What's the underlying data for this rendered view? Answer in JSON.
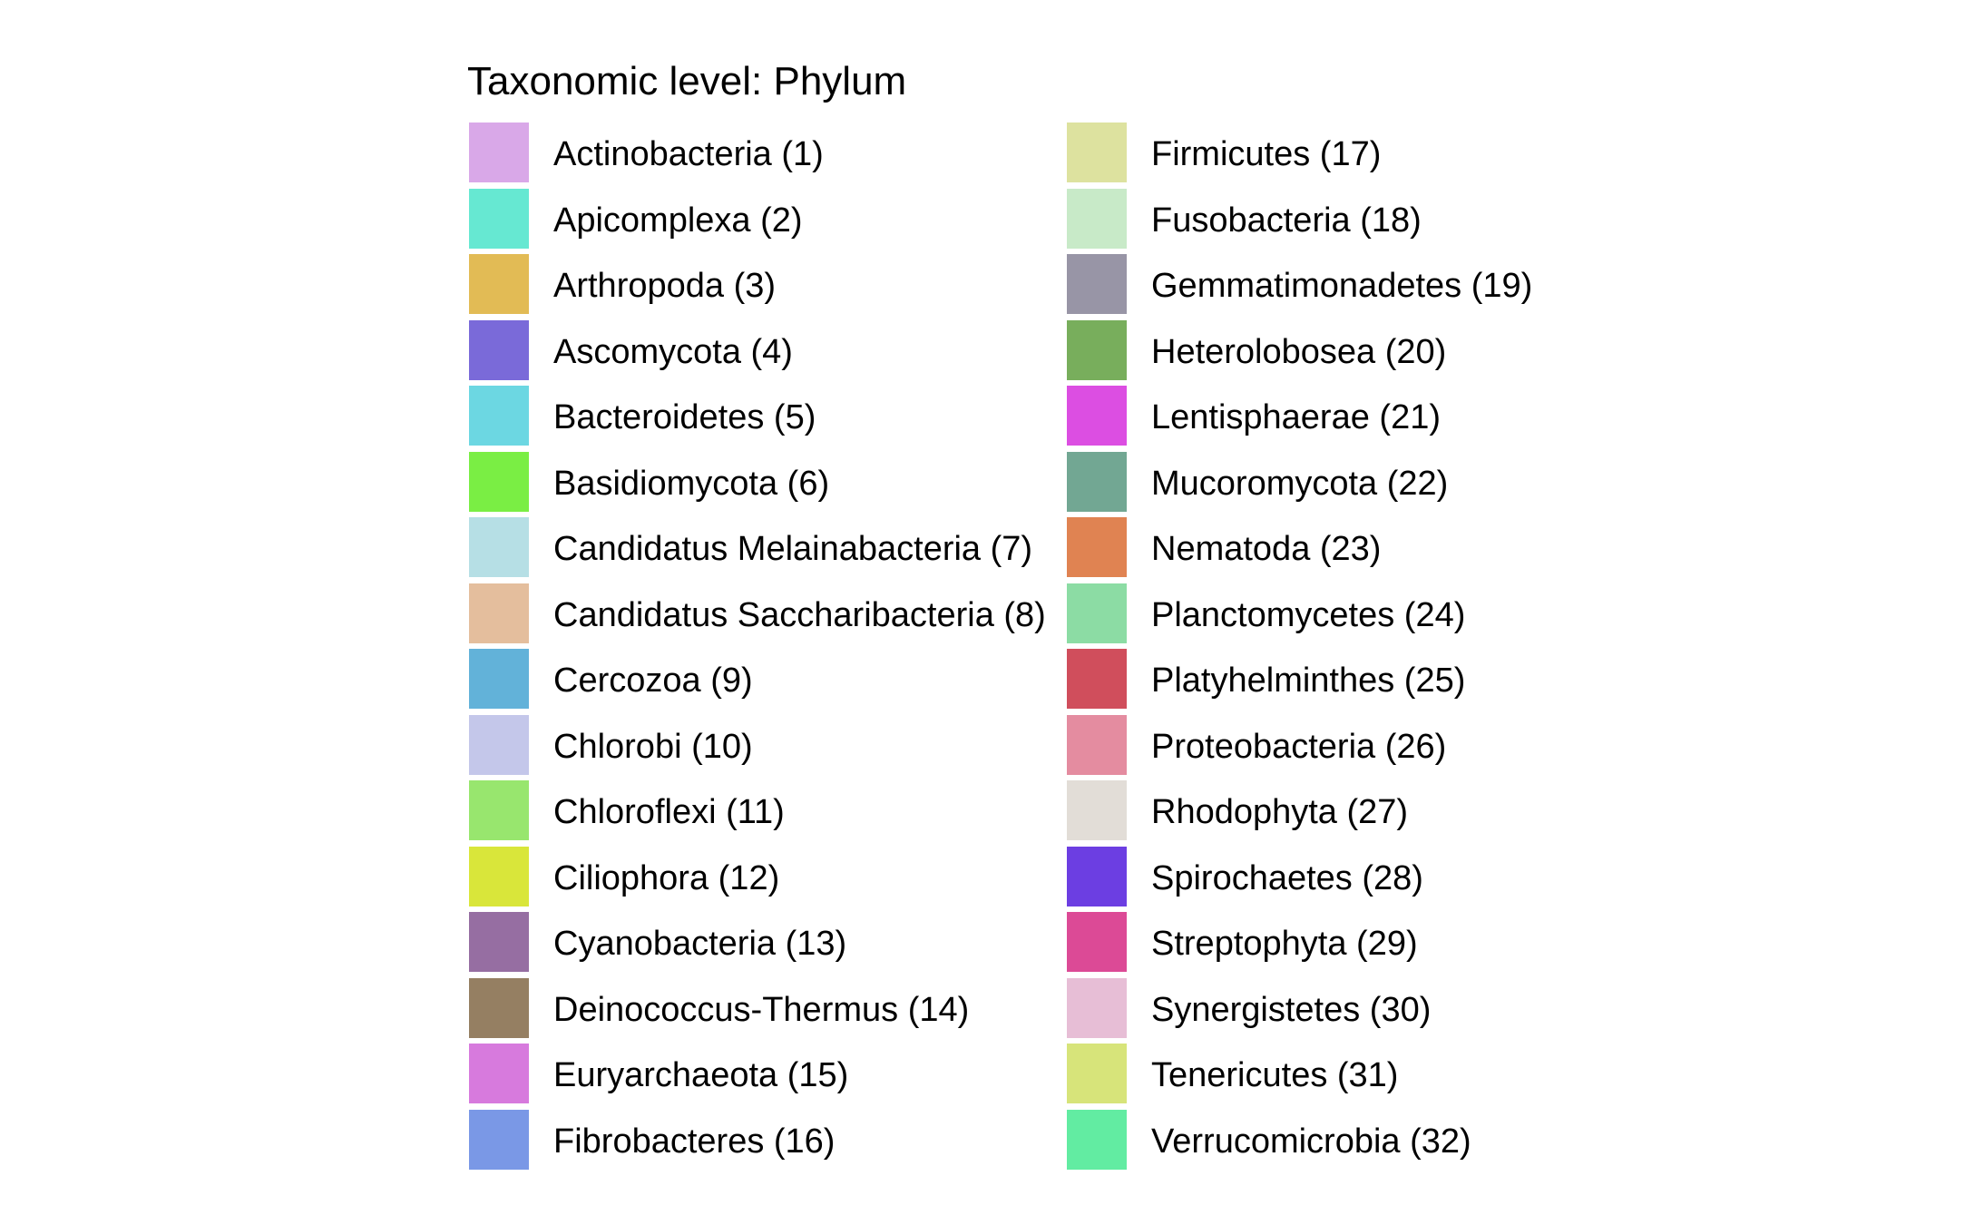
{
  "chart_data": {
    "type": "legend",
    "title": "Taxonomic level: Phylum",
    "legend_columns": 2,
    "entries": [
      {
        "label": "Actinobacteria (1)",
        "color": "#d9a8e8"
      },
      {
        "label": "Apicomplexa (2)",
        "color": "#66e8d2"
      },
      {
        "label": "Arthropoda (3)",
        "color": "#e2bb55"
      },
      {
        "label": "Ascomycota (4)",
        "color": "#7a6ad9"
      },
      {
        "label": "Bacteroidetes (5)",
        "color": "#6cd7e2"
      },
      {
        "label": "Basidiomycota (6)",
        "color": "#7aee44"
      },
      {
        "label": "Candidatus Melainabacteria (7)",
        "color": "#b6dfe5"
      },
      {
        "label": "Candidatus Saccharibacteria (8)",
        "color": "#e4be9d"
      },
      {
        "label": "Cercozoa (9)",
        "color": "#62b2d9"
      },
      {
        "label": "Chlorobi (10)",
        "color": "#c4c7ea"
      },
      {
        "label": "Chloroflexi (11)",
        "color": "#98e66e"
      },
      {
        "label": "Ciliophora (12)",
        "color": "#d9e63a"
      },
      {
        "label": "Cyanobacteria (13)",
        "color": "#966ea2"
      },
      {
        "label": "Deinococcus-Thermus (14)",
        "color": "#957f62"
      },
      {
        "label": "Euryarchaeota (15)",
        "color": "#d77add"
      },
      {
        "label": "Fibrobacteres (16)",
        "color": "#7a98e6"
      },
      {
        "label": "Firmicutes (17)",
        "color": "#dde29f"
      },
      {
        "label": "Fusobacteria (18)",
        "color": "#c8eac8"
      },
      {
        "label": "Gemmatimonadetes (19)",
        "color": "#9895a6"
      },
      {
        "label": "Heterolobosea (20)",
        "color": "#78ae5c"
      },
      {
        "label": "Lentisphaerae (21)",
        "color": "#dc4ee2"
      },
      {
        "label": "Mucoromycota (22)",
        "color": "#72a793"
      },
      {
        "label": "Nematoda (23)",
        "color": "#e08352"
      },
      {
        "label": "Planctomycetes (24)",
        "color": "#8cdca4"
      },
      {
        "label": "Platyhelminthes (25)",
        "color": "#d04e5c"
      },
      {
        "label": "Proteobacteria (26)",
        "color": "#e48ca0"
      },
      {
        "label": "Rhodophyta (27)",
        "color": "#e2ddd7"
      },
      {
        "label": "Spirochaetes (28)",
        "color": "#6c3ee2"
      },
      {
        "label": "Streptophyta (29)",
        "color": "#dc4a96"
      },
      {
        "label": "Synergistetes (30)",
        "color": "#e7bed6"
      },
      {
        "label": "Tenericutes (31)",
        "color": "#d7e47a"
      },
      {
        "label": "Verrucomicrobia (32)",
        "color": "#62eca2"
      }
    ]
  }
}
